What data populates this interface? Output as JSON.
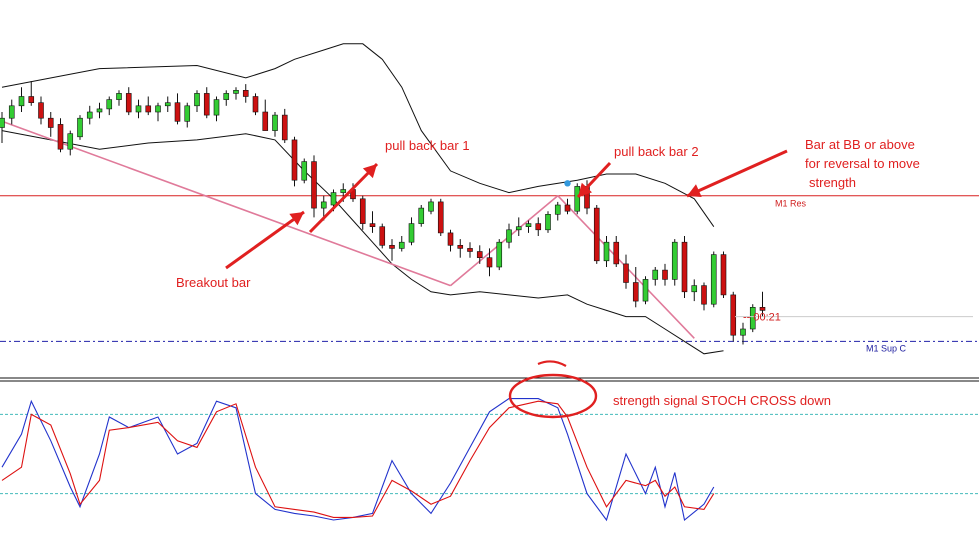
{
  "chart_data": {
    "type": "candlestick",
    "panes": [
      {
        "id": "price",
        "ylim": [
          0,
          100
        ],
        "candles": [
          {
            "o": 75,
            "h": 80,
            "l": 70,
            "c": 78
          },
          {
            "o": 78,
            "h": 84,
            "l": 76,
            "c": 82
          },
          {
            "o": 82,
            "h": 88,
            "l": 80,
            "c": 85
          },
          {
            "o": 85,
            "h": 90,
            "l": 82,
            "c": 83
          },
          {
            "o": 83,
            "h": 85,
            "l": 76,
            "c": 78
          },
          {
            "o": 78,
            "h": 80,
            "l": 72,
            "c": 75
          },
          {
            "o": 76,
            "h": 78,
            "l": 67,
            "c": 68
          },
          {
            "o": 68,
            "h": 74,
            "l": 66,
            "c": 73
          },
          {
            "o": 72,
            "h": 79,
            "l": 71,
            "c": 78
          },
          {
            "o": 78,
            "h": 82,
            "l": 76,
            "c": 80
          },
          {
            "o": 80,
            "h": 83,
            "l": 78,
            "c": 81
          },
          {
            "o": 81,
            "h": 85,
            "l": 79,
            "c": 84
          },
          {
            "o": 84,
            "h": 87,
            "l": 82,
            "c": 86
          },
          {
            "o": 86,
            "h": 88,
            "l": 79,
            "c": 80
          },
          {
            "o": 80,
            "h": 84,
            "l": 78,
            "c": 82
          },
          {
            "o": 82,
            "h": 85,
            "l": 79,
            "c": 80
          },
          {
            "o": 80,
            "h": 83,
            "l": 77,
            "c": 82
          },
          {
            "o": 82,
            "h": 85,
            "l": 80,
            "c": 83
          },
          {
            "o": 83,
            "h": 86,
            "l": 76,
            "c": 77
          },
          {
            "o": 77,
            "h": 83,
            "l": 75,
            "c": 82
          },
          {
            "o": 82,
            "h": 87,
            "l": 80,
            "c": 86
          },
          {
            "o": 86,
            "h": 88,
            "l": 78,
            "c": 79
          },
          {
            "o": 79,
            "h": 85,
            "l": 77,
            "c": 84
          },
          {
            "o": 84,
            "h": 87,
            "l": 82,
            "c": 86
          },
          {
            "o": 86,
            "h": 88,
            "l": 84,
            "c": 87
          },
          {
            "o": 87,
            "h": 89,
            "l": 83,
            "c": 85
          },
          {
            "o": 85,
            "h": 86,
            "l": 79,
            "c": 80
          },
          {
            "o": 80,
            "h": 84,
            "l": 74,
            "c": 74
          },
          {
            "o": 74,
            "h": 80,
            "l": 72,
            "c": 79
          },
          {
            "o": 79,
            "h": 81,
            "l": 70,
            "c": 71
          },
          {
            "o": 71,
            "h": 72,
            "l": 56,
            "c": 58
          },
          {
            "o": 58,
            "h": 65,
            "l": 57,
            "c": 64
          },
          {
            "o": 64,
            "h": 66,
            "l": 46,
            "c": 49
          },
          {
            "o": 49,
            "h": 53,
            "l": 45,
            "c": 51
          },
          {
            "o": 50,
            "h": 55,
            "l": 48,
            "c": 54
          },
          {
            "o": 54,
            "h": 57,
            "l": 51,
            "c": 55
          },
          {
            "o": 55,
            "h": 57,
            "l": 51,
            "c": 52
          },
          {
            "o": 52,
            "h": 53,
            "l": 42,
            "c": 44
          },
          {
            "o": 44,
            "h": 48,
            "l": 41,
            "c": 43
          },
          {
            "o": 43,
            "h": 44,
            "l": 36,
            "c": 37
          },
          {
            "o": 37,
            "h": 39,
            "l": 32,
            "c": 36
          },
          {
            "o": 36,
            "h": 40,
            "l": 35,
            "c": 38
          },
          {
            "o": 38,
            "h": 46,
            "l": 37,
            "c": 44
          },
          {
            "o": 44,
            "h": 50,
            "l": 43,
            "c": 49
          },
          {
            "o": 48,
            "h": 52,
            "l": 47,
            "c": 51
          },
          {
            "o": 51,
            "h": 52,
            "l": 40,
            "c": 41
          },
          {
            "o": 41,
            "h": 42,
            "l": 35,
            "c": 37
          },
          {
            "o": 37,
            "h": 39,
            "l": 33,
            "c": 36
          },
          {
            "o": 36,
            "h": 38,
            "l": 33,
            "c": 35
          },
          {
            "o": 35,
            "h": 37,
            "l": 31,
            "c": 33
          },
          {
            "o": 33,
            "h": 36,
            "l": 27,
            "c": 30
          },
          {
            "o": 30,
            "h": 39,
            "l": 29,
            "c": 38
          },
          {
            "o": 38,
            "h": 44,
            "l": 36,
            "c": 42
          },
          {
            "o": 42,
            "h": 46,
            "l": 40,
            "c": 43
          },
          {
            "o": 43,
            "h": 45,
            "l": 41,
            "c": 44
          },
          {
            "o": 44,
            "h": 46,
            "l": 40,
            "c": 42
          },
          {
            "o": 42,
            "h": 48,
            "l": 41,
            "c": 47
          },
          {
            "o": 47,
            "h": 51,
            "l": 45,
            "c": 50
          },
          {
            "o": 50,
            "h": 52,
            "l": 47,
            "c": 48
          },
          {
            "o": 48,
            "h": 57,
            "l": 47,
            "c": 56
          },
          {
            "o": 56,
            "h": 58,
            "l": 47,
            "c": 49
          },
          {
            "o": 49,
            "h": 50,
            "l": 31,
            "c": 32
          },
          {
            "o": 32,
            "h": 40,
            "l": 30,
            "c": 38
          },
          {
            "o": 38,
            "h": 40,
            "l": 30,
            "c": 31
          },
          {
            "o": 31,
            "h": 34,
            "l": 23,
            "c": 25
          },
          {
            "o": 25,
            "h": 30,
            "l": 17,
            "c": 19
          },
          {
            "o": 19,
            "h": 27,
            "l": 18,
            "c": 26
          },
          {
            "o": 26,
            "h": 30,
            "l": 24,
            "c": 29
          },
          {
            "o": 29,
            "h": 31,
            "l": 24,
            "c": 26
          },
          {
            "o": 26,
            "h": 39,
            "l": 24,
            "c": 38
          },
          {
            "o": 38,
            "h": 40,
            "l": 20,
            "c": 22
          },
          {
            "o": 22,
            "h": 26,
            "l": 19,
            "c": 24
          },
          {
            "o": 24,
            "h": 25,
            "l": 16,
            "c": 18
          },
          {
            "o": 18,
            "h": 35,
            "l": 17,
            "c": 34
          },
          {
            "o": 34,
            "h": 35,
            "l": 20,
            "c": 21
          },
          {
            "o": 21,
            "h": 22,
            "l": 6,
            "c": 8
          },
          {
            "o": 8,
            "h": 12,
            "l": 5,
            "c": 10
          },
          {
            "o": 10,
            "h": 18,
            "l": 9,
            "c": 17
          },
          {
            "o": 17,
            "h": 22,
            "l": 14,
            "c": 16
          }
        ],
        "bollinger_upper": [
          [
            0,
            88
          ],
          [
            10,
            94
          ],
          [
            20,
            95
          ],
          [
            25,
            91
          ],
          [
            28,
            94
          ],
          [
            30,
            97
          ],
          [
            33,
            100
          ],
          [
            35,
            102
          ],
          [
            37,
            102
          ],
          [
            39,
            97
          ],
          [
            41,
            88
          ],
          [
            43,
            74
          ],
          [
            46,
            61
          ],
          [
            49,
            57
          ],
          [
            52,
            54
          ],
          [
            55,
            56
          ],
          [
            59,
            58
          ],
          [
            62,
            60
          ],
          [
            65,
            60
          ],
          [
            68,
            57
          ],
          [
            71,
            52
          ],
          [
            73,
            43
          ]
        ],
        "bollinger_lower": [
          [
            0,
            74
          ],
          [
            5,
            71
          ],
          [
            10,
            68
          ],
          [
            15,
            70
          ],
          [
            20,
            71
          ],
          [
            25,
            73
          ],
          [
            28,
            71
          ],
          [
            31,
            61
          ],
          [
            34,
            52
          ],
          [
            36,
            45
          ],
          [
            38,
            38
          ],
          [
            40,
            31
          ],
          [
            42,
            26
          ],
          [
            44,
            22
          ],
          [
            46,
            21
          ],
          [
            49,
            22
          ],
          [
            52,
            21
          ],
          [
            55,
            20
          ],
          [
            58,
            21
          ],
          [
            60,
            18
          ],
          [
            62,
            16
          ],
          [
            64,
            14
          ],
          [
            66,
            14
          ],
          [
            68,
            10
          ],
          [
            70,
            6
          ],
          [
            72,
            2
          ],
          [
            74,
            3
          ]
        ],
        "trend_lines": [
          {
            "points": [
              [
                0,
                77
              ],
              [
                46,
                24
              ]
            ]
          },
          {
            "points": [
              [
                46,
                24
              ],
              [
                57,
                53
              ]
            ]
          },
          {
            "points": [
              [
                57,
                53
              ],
              [
                71,
                7
              ]
            ]
          }
        ],
        "levels": [
          {
            "label": "M1 Res",
            "value": 53
          },
          {
            "label": "M1 Sup C",
            "value": 6
          }
        ],
        "price_marker": {
          "label": "00:21",
          "value": 14
        }
      },
      {
        "id": "stochastic",
        "ylim": [
          0,
          100
        ],
        "levels": [
          80,
          20
        ],
        "main": [
          [
            0,
            40
          ],
          [
            2,
            65
          ],
          [
            3,
            90
          ],
          [
            5,
            60
          ],
          [
            7,
            25
          ],
          [
            8,
            10
          ],
          [
            10,
            50
          ],
          [
            11,
            78
          ],
          [
            13,
            70
          ],
          [
            16,
            78
          ],
          [
            18,
            50
          ],
          [
            20,
            58
          ],
          [
            22,
            90
          ],
          [
            24,
            85
          ],
          [
            26,
            20
          ],
          [
            28,
            8
          ],
          [
            30,
            5
          ],
          [
            32,
            3
          ],
          [
            34,
            0
          ],
          [
            36,
            2
          ],
          [
            38,
            5
          ],
          [
            40,
            45
          ],
          [
            42,
            20
          ],
          [
            44,
            5
          ],
          [
            46,
            28
          ],
          [
            48,
            55
          ],
          [
            50,
            82
          ],
          [
            52,
            92
          ],
          [
            55,
            92
          ],
          [
            57,
            85
          ],
          [
            58,
            65
          ],
          [
            60,
            20
          ],
          [
            62,
            0
          ],
          [
            64,
            50
          ],
          [
            66,
            20
          ],
          [
            67,
            40
          ],
          [
            68,
            10
          ],
          [
            69,
            36
          ],
          [
            70,
            0
          ],
          [
            72,
            12
          ],
          [
            73,
            25
          ]
        ],
        "signal": [
          [
            0,
            30
          ],
          [
            2,
            40
          ],
          [
            3,
            80
          ],
          [
            5,
            72
          ],
          [
            7,
            35
          ],
          [
            8,
            12
          ],
          [
            10,
            30
          ],
          [
            11,
            68
          ],
          [
            13,
            70
          ],
          [
            16,
            74
          ],
          [
            18,
            60
          ],
          [
            20,
            55
          ],
          [
            22,
            82
          ],
          [
            24,
            88
          ],
          [
            26,
            40
          ],
          [
            28,
            10
          ],
          [
            30,
            8
          ],
          [
            32,
            6
          ],
          [
            34,
            2
          ],
          [
            36,
            2
          ],
          [
            38,
            3
          ],
          [
            40,
            30
          ],
          [
            42,
            22
          ],
          [
            44,
            12
          ],
          [
            46,
            18
          ],
          [
            48,
            45
          ],
          [
            50,
            70
          ],
          [
            52,
            85
          ],
          [
            55,
            90
          ],
          [
            57,
            88
          ],
          [
            58,
            78
          ],
          [
            60,
            40
          ],
          [
            62,
            10
          ],
          [
            64,
            30
          ],
          [
            66,
            26
          ],
          [
            67,
            30
          ],
          [
            68,
            18
          ],
          [
            69,
            25
          ],
          [
            70,
            10
          ],
          [
            72,
            8
          ],
          [
            73,
            20
          ]
        ]
      }
    ],
    "annotations": [
      {
        "id": "breakout",
        "text": "Breakout bar"
      },
      {
        "id": "pullback1",
        "text": "pull back bar 1"
      },
      {
        "id": "pullback2",
        "text": "pull back bar 2"
      },
      {
        "id": "bb-note",
        "lines": [
          "Bar at BB or above",
          "for reversal to move",
          "strength"
        ]
      },
      {
        "id": "stoch-note",
        "text": "strength signal  STOCH CROSS down"
      }
    ]
  },
  "colors": {
    "bull": "#33cc33",
    "bear": "#cc1111",
    "wick": "#111111",
    "bollinger": "#111111",
    "trend": "#e07a9a",
    "resistance": "#d82020",
    "support": "#2222aa",
    "stoch_main": "#2233cc",
    "stoch_signal": "#dd1111",
    "stoch_level": "#44bbbb",
    "annotation": "#e02020"
  }
}
